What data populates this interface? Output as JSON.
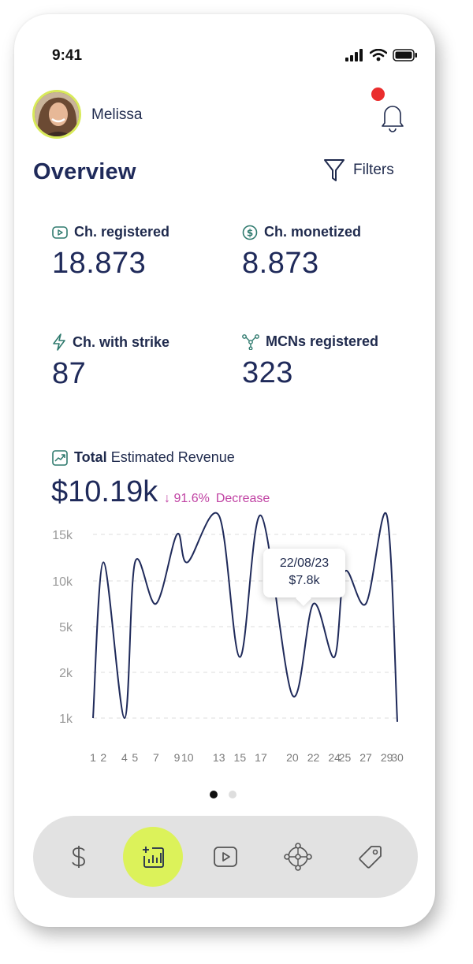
{
  "status_bar": {
    "time": "9:41"
  },
  "user": {
    "name": "Melissa"
  },
  "header": {
    "title": "Overview",
    "filters_label": "Filters"
  },
  "stats": [
    {
      "label": "Ch. registered",
      "value": "18.873",
      "icon": "play-icon"
    },
    {
      "label": "Ch. monetized",
      "value": "8.873",
      "icon": "dollar-circle-icon"
    },
    {
      "label": "Ch. with strike",
      "value": "87",
      "icon": "bolt-icon"
    },
    {
      "label": "MCNs registered",
      "value": "323",
      "icon": "network-icon"
    }
  ],
  "revenue": {
    "label_bold": "Total",
    "label_rest": "Estimated Revenue",
    "value": "$10.19k",
    "change": "↓ 91.6%",
    "change_label": "Decrease"
  },
  "tooltip": {
    "date": "22/08/23",
    "value": "$7.8k"
  },
  "chart_data": {
    "type": "line",
    "y_ticks": [
      "15k",
      "10k",
      "5k",
      "2k",
      "1k"
    ],
    "x_ticks": [
      "1",
      "2",
      "4",
      "5",
      "7",
      "9",
      "10",
      "13",
      "15",
      "17",
      "20",
      "22",
      "24",
      "25",
      "27",
      "29",
      "30"
    ],
    "series": [
      {
        "x": [
          1,
          2,
          4,
          5,
          7,
          9,
          10,
          13,
          15,
          17,
          20,
          22,
          24,
          25,
          27,
          29,
          30
        ],
        "y": [
          1,
          12,
          1,
          12,
          7.5,
          15,
          12,
          17,
          3,
          17,
          1.5,
          7.5,
          3,
          11,
          7.5,
          17,
          0.8
        ]
      }
    ],
    "colors": {
      "line": "#1f2a5a",
      "grid": "#dddddd"
    }
  },
  "pagination": {
    "count": 2,
    "active": 0
  },
  "nav": {
    "items": [
      "dollar-icon",
      "add-chart-icon",
      "play-icon",
      "network-icon",
      "tag-icon"
    ],
    "active": 1,
    "accent": "#dcf25a"
  }
}
